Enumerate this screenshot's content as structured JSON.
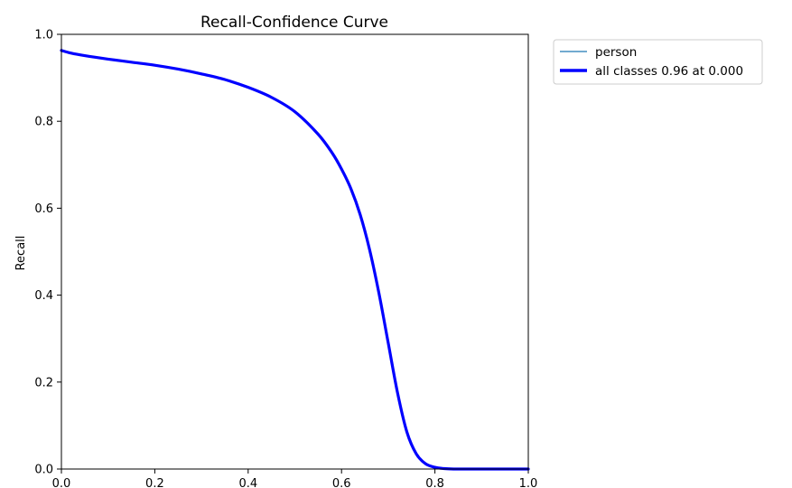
{
  "chart_data": {
    "type": "line",
    "title": "Recall-Confidence Curve",
    "xlabel": "",
    "ylabel": "Recall",
    "xlim": [
      0.0,
      1.0
    ],
    "ylim": [
      0.0,
      1.0
    ],
    "x_ticks": [
      "0.0",
      "0.2",
      "0.4",
      "0.6",
      "0.8",
      "1.0"
    ],
    "y_ticks": [
      "0.0",
      "0.2",
      "0.4",
      "0.6",
      "0.8",
      "1.0"
    ],
    "grid": false,
    "legend_position": "outside-top-right",
    "series": [
      {
        "name": "person",
        "color": "#1f77b4",
        "line_style": "thin",
        "x": [
          0.0,
          0.02,
          0.05,
          0.1,
          0.15,
          0.2,
          0.25,
          0.3,
          0.35,
          0.4,
          0.45,
          0.5,
          0.55,
          0.58,
          0.6,
          0.62,
          0.64,
          0.66,
          0.68,
          0.7,
          0.72,
          0.74,
          0.76,
          0.78,
          0.8,
          0.82,
          0.84,
          0.86,
          0.9,
          0.95,
          1.0
        ],
        "y": [
          0.963,
          0.957,
          0.951,
          0.943,
          0.936,
          0.929,
          0.92,
          0.909,
          0.896,
          0.878,
          0.855,
          0.822,
          0.77,
          0.727,
          0.69,
          0.645,
          0.585,
          0.505,
          0.405,
          0.29,
          0.175,
          0.085,
          0.035,
          0.012,
          0.004,
          0.001,
          0.0,
          0.0,
          0.0,
          0.0,
          0.0
        ]
      },
      {
        "name": "all classes 0.96 at 0.000",
        "color": "#0000ff",
        "line_style": "thick",
        "x": [
          0.0,
          0.02,
          0.05,
          0.1,
          0.15,
          0.2,
          0.25,
          0.3,
          0.35,
          0.4,
          0.45,
          0.5,
          0.55,
          0.58,
          0.6,
          0.62,
          0.64,
          0.66,
          0.68,
          0.7,
          0.72,
          0.74,
          0.76,
          0.78,
          0.8,
          0.82,
          0.84,
          0.86,
          0.9,
          0.95,
          1.0
        ],
        "y": [
          0.963,
          0.957,
          0.951,
          0.943,
          0.936,
          0.929,
          0.92,
          0.909,
          0.896,
          0.878,
          0.855,
          0.822,
          0.77,
          0.727,
          0.69,
          0.645,
          0.585,
          0.505,
          0.405,
          0.29,
          0.175,
          0.085,
          0.035,
          0.012,
          0.004,
          0.001,
          0.0,
          0.0,
          0.0,
          0.0,
          0.0
        ]
      }
    ]
  }
}
